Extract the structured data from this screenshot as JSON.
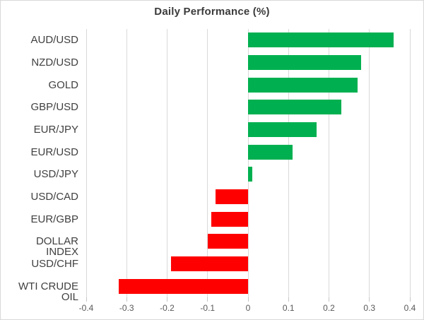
{
  "chart": {
    "title": "Daily Performance (%)"
  },
  "chart_data": {
    "type": "bar",
    "orientation": "horizontal",
    "title": "Daily Performance (%)",
    "categories": [
      "AUD/USD",
      "NZD/USD",
      "GOLD",
      "GBP/USD",
      "EUR/JPY",
      "EUR/USD",
      "USD/JPY",
      "USD/CAD",
      "EUR/GBP",
      "DOLLAR INDEX",
      "USD/CHF",
      "WTI CRUDE OIL"
    ],
    "values": [
      0.36,
      0.28,
      0.27,
      0.23,
      0.17,
      0.11,
      0.01,
      -0.08,
      -0.09,
      -0.1,
      -0.19,
      -0.32
    ],
    "xlabel": "",
    "ylabel": "",
    "xlim": [
      -0.4,
      0.4
    ],
    "xticks": [
      -0.4,
      -0.3,
      -0.2,
      -0.1,
      0,
      0.1,
      0.2,
      0.3,
      0.4
    ],
    "xtick_labels": [
      "-0.4",
      "-0.3",
      "-0.2",
      "-0.1",
      "0",
      "0.1",
      "0.2",
      "0.3",
      "0.4"
    ],
    "grid": true,
    "legend": false,
    "positive_color": "#00B050",
    "negative_color": "#FF0000",
    "gridline_color": "#D9D9D9",
    "tick_color": "#C6C6C6",
    "title_color": "#3B3B3B",
    "category_label_color": "#404040",
    "axis_label_color": "#595959",
    "background_color": "#FFFFFF",
    "border_color": "#D9D9D9"
  }
}
